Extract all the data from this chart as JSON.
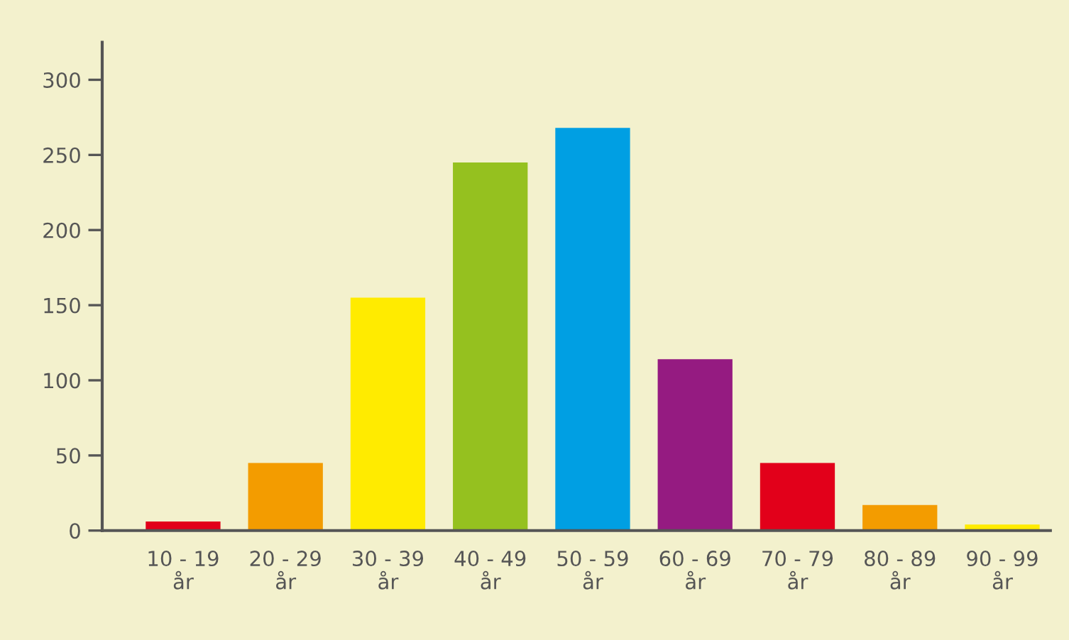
{
  "chart_data": {
    "type": "bar",
    "categories": [
      "10 - 19\når",
      "20 - 29\når",
      "30 - 39\når",
      "40 - 49\når",
      "50 - 59\når",
      "60 - 69\når",
      "70 - 79\når",
      "80 - 89\når",
      "90 - 99\når"
    ],
    "values": [
      6,
      45,
      155,
      245,
      268,
      114,
      45,
      17,
      4
    ],
    "colors": [
      "#e2001a",
      "#f39c00",
      "#ffeb00",
      "#95c11f",
      "#009fe3",
      "#951b81",
      "#e2001a",
      "#f39c00",
      "#ffeb00"
    ],
    "ylim": [
      0,
      325
    ],
    "yticks": [
      0,
      50,
      100,
      150,
      200,
      250,
      300
    ],
    "grid": false,
    "legend": false
  }
}
